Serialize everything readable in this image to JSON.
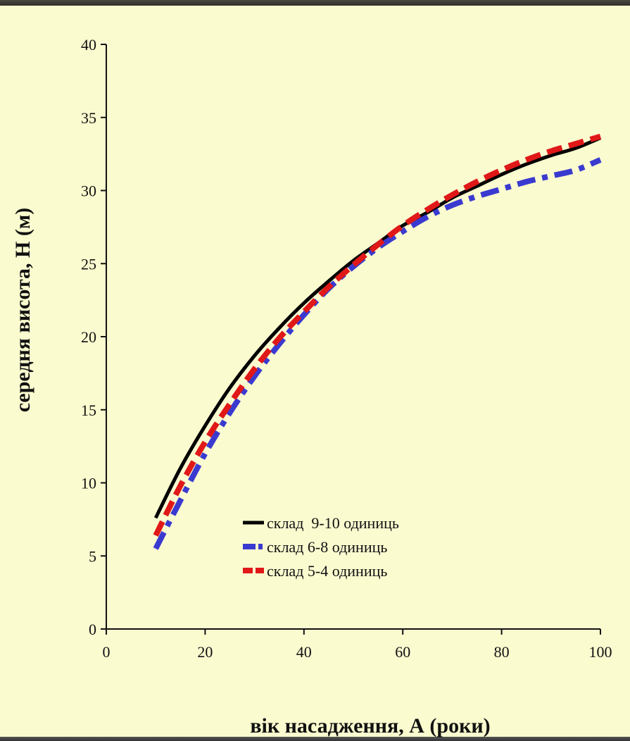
{
  "chart_data": {
    "type": "line",
    "xlabel": "вік насадження, А (роки)",
    "ylabel": "середня висота, Н (м)",
    "xlim": [
      0,
      100
    ],
    "ylim": [
      0,
      40
    ],
    "xticks": [
      "0",
      "20",
      "40",
      "60",
      "80",
      "100"
    ],
    "yticks": [
      "0",
      "5",
      "10",
      "15",
      "20",
      "25",
      "30",
      "35",
      "40"
    ],
    "legend_position": "lower-center",
    "series": [
      {
        "name": "склад  9-10 одиниць",
        "color": "#000000",
        "style": "solid",
        "x": [
          10,
          15,
          20,
          25,
          30,
          35,
          40,
          45,
          50,
          55,
          60,
          65,
          70,
          75,
          80,
          85,
          90,
          95,
          100
        ],
        "y": [
          7.6,
          11.0,
          13.9,
          16.5,
          18.7,
          20.6,
          22.3,
          23.8,
          25.2,
          26.4,
          27.6,
          28.5,
          29.5,
          30.3,
          31.1,
          31.8,
          32.4,
          32.9,
          33.6
        ]
      },
      {
        "name": "склад 6-8 одиниць",
        "color": "#3a3ad0",
        "style": "dashdot",
        "x": [
          10,
          15,
          20,
          25,
          30,
          35,
          40,
          45,
          50,
          55,
          60,
          65,
          70,
          75,
          80,
          85,
          90,
          95,
          100
        ],
        "y": [
          5.5,
          8.8,
          12.0,
          14.8,
          17.3,
          19.5,
          21.5,
          23.3,
          24.8,
          26.1,
          27.2,
          28.2,
          29.0,
          29.6,
          30.1,
          30.6,
          31.0,
          31.4,
          32.1
        ]
      },
      {
        "name": "склад 5-4 одиниць",
        "color": "#e01818",
        "style": "dashed",
        "x": [
          10,
          15,
          20,
          25,
          30,
          35,
          40,
          45,
          50,
          55,
          60,
          65,
          70,
          75,
          80,
          85,
          90,
          95,
          100
        ],
        "y": [
          6.4,
          9.8,
          12.8,
          15.4,
          17.8,
          19.9,
          21.7,
          23.4,
          24.9,
          26.3,
          27.6,
          28.7,
          29.7,
          30.6,
          31.4,
          32.1,
          32.7,
          33.2,
          33.7
        ]
      }
    ]
  }
}
